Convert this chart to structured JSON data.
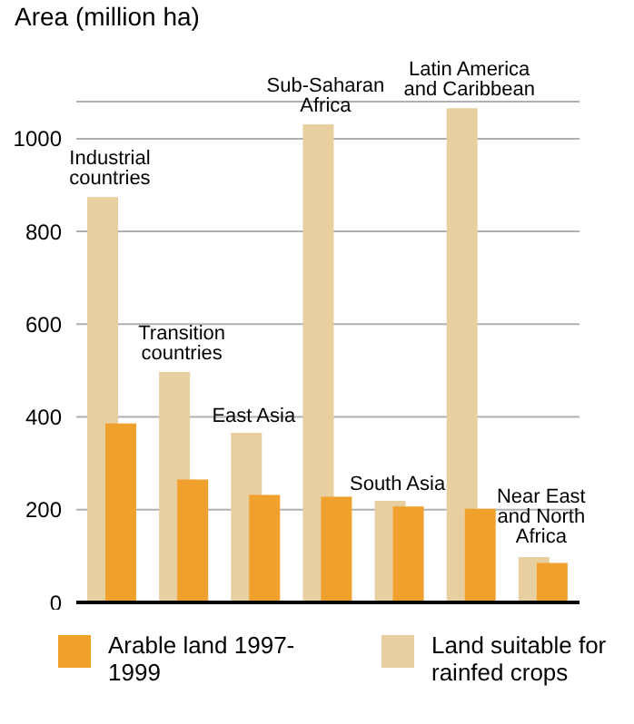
{
  "chart_data": {
    "type": "bar",
    "ylabel": "Area (million ha)",
    "categories": [
      "Industrial countries",
      "Transition countries",
      "East Asia",
      "Sub-Saharan Africa",
      "South Asia",
      "Latin America and Caribbean",
      "Near East and North Africa"
    ],
    "series": [
      {
        "name": "Arable land 1997-1999",
        "color": "#f0a02c",
        "values": [
          386,
          265,
          232,
          228,
          207,
          202,
          85
        ]
      },
      {
        "name": "Land suitable for rainfed crops",
        "color": "#e8cfa0",
        "values": [
          874,
          497,
          366,
          1031,
          219,
          1066,
          98
        ]
      }
    ],
    "ylim": [
      0,
      1080
    ],
    "yticks": [
      0,
      200,
      400,
      600,
      800,
      1000
    ],
    "grid": "y",
    "legend": "bottom"
  }
}
